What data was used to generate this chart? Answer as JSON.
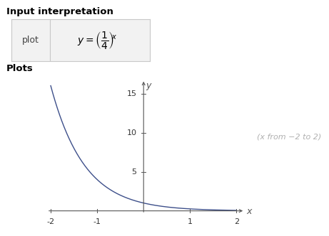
{
  "title_interpretation": "Input interpretation",
  "title_plots": "Plots",
  "plot_label": "plot",
  "x_min": -2,
  "x_max": 2,
  "y_min": 0,
  "y_max": 17,
  "x_ticks": [
    -2,
    -1,
    1,
    2
  ],
  "y_ticks": [
    5,
    10,
    15
  ],
  "curve_color": "#3d4f8a",
  "annotation_text": "(x from −2 to 2)",
  "annotation_color": "#b0b0b0",
  "background_color": "#ffffff",
  "box_border_color": "#c8c8c8",
  "box_fill_color": "#f2f2f2",
  "axis_color": "#555555",
  "tick_label_color": "#333333",
  "label_color": "#555555",
  "font_size_header": 9.5,
  "font_size_ticks": 8,
  "font_size_annotation": 8
}
